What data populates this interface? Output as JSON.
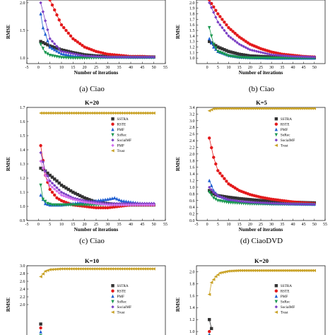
{
  "chart_data": [
    {
      "type": "line",
      "title": "",
      "caption": "(a) Ciao",
      "xlabel": "Number of iterations",
      "ylabel": "RMSE",
      "xlim": [
        -5,
        55
      ],
      "ylim": [
        0.9,
        2.05
      ],
      "xticks": [
        "-5",
        "0",
        "5",
        "10",
        "15",
        "20",
        "25",
        "30",
        "35",
        "40",
        "45",
        "50",
        "55"
      ],
      "yticks": [
        "1.0",
        "1.5",
        "2.0"
      ],
      "legend": "none",
      "series": [
        {
          "name": "SSTRA",
          "x": [
            1,
            5,
            10,
            15,
            20,
            25,
            30,
            35,
            40,
            45,
            50
          ],
          "values": [
            1.3,
            1.22,
            1.15,
            1.1,
            1.06,
            1.04,
            1.03,
            1.03,
            1.02,
            1.02,
            1.02
          ]
        },
        {
          "name": "RSTE",
          "x": [
            5,
            10,
            15,
            20,
            25,
            30,
            35,
            40,
            45,
            50
          ],
          "values": [
            2.05,
            1.6,
            1.35,
            1.2,
            1.12,
            1.07,
            1.05,
            1.03,
            1.03,
            1.02
          ]
        },
        {
          "name": "PMF",
          "x": [
            1,
            2,
            5,
            10,
            15,
            20,
            30,
            40,
            50
          ],
          "values": [
            1.8,
            1.55,
            1.2,
            1.08,
            1.04,
            1.03,
            1.02,
            1.02,
            1.02
          ]
        },
        {
          "name": "SoRec",
          "x": [
            1,
            3,
            5,
            10,
            15,
            20,
            30,
            40,
            50
          ],
          "values": [
            1.25,
            1.1,
            1.05,
            1.01,
            1.0,
            1.0,
            1.01,
            1.01,
            1.01
          ]
        },
        {
          "name": "SocialMF",
          "x": [
            1,
            5,
            10,
            20,
            30,
            40,
            50
          ],
          "values": [
            2.0,
            1.35,
            1.12,
            1.04,
            1.02,
            1.02,
            1.02
          ]
        }
      ]
    },
    {
      "type": "line",
      "title": "",
      "caption": "(b) Ciao",
      "xlabel": "Number of iterations",
      "ylabel": "RMSE",
      "xlim": [
        -5,
        55
      ],
      "ylim": [
        0.9,
        2.05
      ],
      "xticks": [
        "0",
        "5",
        "10",
        "15",
        "20",
        "25",
        "30",
        "35",
        "40",
        "45",
        "50"
      ],
      "yticks": [
        "1.0",
        "1.1",
        "1.2",
        "1.3",
        "1.4",
        "1.5",
        "1.6",
        "1.7",
        "1.8",
        "1.9",
        "2.0"
      ],
      "legend": "none",
      "series": [
        {
          "name": "SSTRA",
          "x": [
            1,
            5,
            10,
            15,
            20,
            25,
            30,
            35,
            40,
            45,
            50
          ],
          "values": [
            1.3,
            1.2,
            1.12,
            1.07,
            1.04,
            1.03,
            1.02,
            1.02,
            1.01,
            1.01,
            1.01
          ]
        },
        {
          "name": "RSTE",
          "x": [
            1,
            5,
            10,
            15,
            20,
            25,
            30,
            35,
            40,
            45,
            50
          ],
          "values": [
            2.05,
            1.8,
            1.55,
            1.38,
            1.25,
            1.17,
            1.11,
            1.07,
            1.05,
            1.03,
            1.02
          ]
        },
        {
          "name": "PMF",
          "x": [
            1,
            3,
            5,
            10,
            15,
            20,
            30,
            40,
            50
          ],
          "values": [
            1.35,
            1.2,
            1.12,
            1.05,
            1.02,
            1.01,
            1.0,
            1.0,
            1.0
          ]
        },
        {
          "name": "SoRec",
          "x": [
            1,
            3,
            5,
            10,
            15,
            20,
            30,
            40,
            50
          ],
          "values": [
            1.55,
            1.25,
            1.12,
            1.04,
            1.01,
            1.0,
            1.0,
            1.0,
            1.0
          ]
        },
        {
          "name": "SocialMF",
          "x": [
            1,
            5,
            10,
            15,
            20,
            30,
            40,
            50
          ],
          "values": [
            2.0,
            1.65,
            1.4,
            1.25,
            1.15,
            1.06,
            1.03,
            1.02
          ]
        }
      ]
    },
    {
      "type": "line",
      "title": "K=20",
      "caption": "(c) Ciao",
      "xlabel": "Number of iterations",
      "ylabel": "RMSE",
      "xlim": [
        -5,
        55
      ],
      "ylim": [
        0.9,
        1.7
      ],
      "xticks": [
        "-5",
        "0",
        "5",
        "10",
        "15",
        "20",
        "25",
        "30",
        "35",
        "40",
        "45",
        "50",
        "55"
      ],
      "yticks": [
        "0.9",
        "1.0",
        "1.1",
        "1.2",
        "1.3",
        "1.4",
        "1.5",
        "1.6",
        "1.7"
      ],
      "legend": "right",
      "series": [
        {
          "name": "SSTRA",
          "x": [
            1,
            3,
            5,
            8,
            10,
            15,
            20,
            25,
            30,
            35,
            40,
            45,
            50
          ],
          "values": [
            1.27,
            1.25,
            1.22,
            1.18,
            1.15,
            1.1,
            1.06,
            1.03,
            1.02,
            1.01,
            1.01,
            1.01,
            1.01
          ]
        },
        {
          "name": "RSTE",
          "x": [
            1,
            3,
            5,
            8,
            10,
            15,
            20,
            25,
            30,
            35,
            40,
            45,
            50
          ],
          "values": [
            1.43,
            1.22,
            1.12,
            1.06,
            1.04,
            1.01,
            1.0,
            0.99,
            0.99,
            1.0,
            1.01,
            1.01,
            1.01
          ]
        },
        {
          "name": "PMF",
          "x": [
            1,
            3,
            5,
            10,
            15,
            20,
            25,
            30,
            33,
            36,
            40,
            45,
            50
          ],
          "values": [
            1.08,
            1.02,
            1.01,
            1.01,
            1.02,
            1.03,
            1.04,
            1.05,
            1.06,
            1.04,
            1.03,
            1.02,
            1.02
          ]
        },
        {
          "name": "SoRec",
          "x": [
            1,
            2,
            4,
            6,
            10,
            15,
            20,
            30,
            40,
            50
          ],
          "values": [
            1.15,
            1.05,
            1.02,
            1.01,
            1.01,
            1.01,
            1.01,
            1.01,
            1.01,
            1.01
          ]
        },
        {
          "name": "SocialMF",
          "x": [
            1,
            3,
            5,
            10,
            15,
            20,
            25,
            30,
            35,
            40,
            45,
            50
          ],
          "values": [
            1.38,
            1.25,
            1.18,
            1.1,
            1.06,
            1.04,
            1.03,
            1.02,
            1.02,
            1.02,
            1.02,
            1.02
          ]
        },
        {
          "name": "PMF",
          "x": [
            1,
            3,
            5,
            10,
            15,
            20,
            25,
            30,
            35,
            40,
            45,
            50
          ],
          "values": [
            1.32,
            1.22,
            1.15,
            1.08,
            1.05,
            1.03,
            1.02,
            1.01,
            1.01,
            1.01,
            1.01,
            1.01
          ]
        },
        {
          "name": "Trust",
          "x": [
            1,
            3,
            5,
            10,
            15,
            20,
            25,
            30,
            35,
            40,
            45,
            50
          ],
          "values": [
            1.66,
            1.66,
            1.66,
            1.66,
            1.66,
            1.66,
            1.66,
            1.66,
            1.66,
            1.66,
            1.66,
            1.66
          ]
        }
      ]
    },
    {
      "type": "line",
      "title": "K=5",
      "caption": "(d) CiaoDVD",
      "xlabel": "Number of iterations",
      "ylabel": "RMSE",
      "xlim": [
        -5,
        55
      ],
      "ylim": [
        0.0,
        3.4
      ],
      "xticks": [
        "-5",
        "0",
        "5",
        "10",
        "15",
        "20",
        "25",
        "30",
        "35",
        "40",
        "45",
        "50",
        "55"
      ],
      "yticks": [
        "0.0",
        "0.2",
        "0.4",
        "0.6",
        "0.8",
        "1.0",
        "1.2",
        "1.4",
        "1.6",
        "1.8",
        "2.0",
        "2.2",
        "2.4",
        "2.6",
        "2.8",
        "3.0",
        "3.2",
        "3.4"
      ],
      "legend": "right",
      "series": [
        {
          "name": "SSTRA",
          "x": [
            1,
            3,
            5,
            10,
            15,
            20,
            25,
            30,
            35,
            40,
            45,
            50
          ],
          "values": [
            0.9,
            0.8,
            0.75,
            0.7,
            0.66,
            0.63,
            0.6,
            0.58,
            0.56,
            0.55,
            0.54,
            0.53
          ]
        },
        {
          "name": "RSTE",
          "x": [
            1,
            3,
            5,
            10,
            15,
            20,
            25,
            30,
            35,
            40,
            45,
            50
          ],
          "values": [
            2.48,
            1.9,
            1.5,
            1.1,
            0.9,
            0.78,
            0.7,
            0.64,
            0.6,
            0.56,
            0.53,
            0.51
          ]
        },
        {
          "name": "PMF",
          "x": [
            1,
            3,
            5,
            10,
            15,
            20,
            30,
            40,
            50
          ],
          "values": [
            1.2,
            0.9,
            0.75,
            0.62,
            0.57,
            0.54,
            0.51,
            0.5,
            0.49
          ]
        },
        {
          "name": "SoRec",
          "x": [
            1,
            3,
            5,
            10,
            15,
            20,
            30,
            40,
            50
          ],
          "values": [
            0.85,
            0.68,
            0.6,
            0.54,
            0.52,
            0.5,
            0.49,
            0.49,
            0.48
          ]
        },
        {
          "name": "SocialMF",
          "x": [
            1,
            3,
            5,
            10,
            15,
            20,
            30,
            40,
            50
          ],
          "values": [
            1.0,
            0.85,
            0.74,
            0.63,
            0.58,
            0.55,
            0.52,
            0.5,
            0.49
          ]
        },
        {
          "name": "Trust",
          "x": [
            1,
            3,
            5,
            10,
            15,
            20,
            25,
            30,
            35,
            40,
            45,
            50
          ],
          "values": [
            3.3,
            3.36,
            3.37,
            3.37,
            3.37,
            3.37,
            3.37,
            3.37,
            3.37,
            3.37,
            3.37,
            3.37
          ]
        }
      ]
    },
    {
      "type": "line",
      "title": "K=10",
      "caption": "",
      "xlabel": "",
      "ylabel": "RMSE",
      "xlim": [
        -5,
        55
      ],
      "ylim": [
        1.0,
        3.0
      ],
      "xticks": [],
      "yticks": [
        "2.0",
        "2.2",
        "2.4",
        "2.6",
        "2.8",
        "3.0"
      ],
      "legend": "right",
      "series": [
        {
          "name": "SSTRA",
          "x": [
            1
          ],
          "values": [
            1.5
          ]
        },
        {
          "name": "RSTE",
          "x": [
            1
          ],
          "values": [
            1.4
          ]
        },
        {
          "name": "PMF",
          "x": [
            1
          ],
          "values": [
            1.3
          ]
        },
        {
          "name": "SoRec",
          "x": [
            1
          ],
          "values": [
            1.2
          ]
        },
        {
          "name": "SocialMF",
          "x": [
            1
          ],
          "values": [
            1.1
          ]
        },
        {
          "name": "Trust",
          "x": [
            1,
            3,
            5,
            10,
            15,
            20,
            25,
            30,
            35,
            40,
            45,
            50
          ],
          "values": [
            2.72,
            2.86,
            2.9,
            2.92,
            2.92,
            2.92,
            2.92,
            2.92,
            2.92,
            2.92,
            2.92,
            2.92
          ]
        }
      ]
    },
    {
      "type": "line",
      "title": "K=20",
      "caption": "",
      "xlabel": "",
      "ylabel": "RMSE",
      "xlim": [
        -5,
        55
      ],
      "ylim": [
        0.8,
        2.1
      ],
      "xticks": [],
      "yticks": [
        "1.0",
        "1.2",
        "1.4",
        "1.6",
        "1.8",
        "2.0"
      ],
      "legend": "right",
      "series": [
        {
          "name": "SSTRA",
          "x": [
            1,
            2
          ],
          "values": [
            1.2,
            1.05
          ]
        },
        {
          "name": "RSTE",
          "x": [
            1
          ],
          "values": [
            1.0
          ]
        },
        {
          "name": "PMF",
          "x": [
            1
          ],
          "values": [
            0.95
          ]
        },
        {
          "name": "SoRec",
          "x": [
            1
          ],
          "values": [
            0.92
          ]
        },
        {
          "name": "SocialMF",
          "x": [
            1
          ],
          "values": [
            0.9
          ]
        },
        {
          "name": "Trust",
          "x": [
            1,
            2,
            4,
            6,
            10,
            15,
            20,
            25,
            30,
            35,
            40,
            45,
            50
          ],
          "values": [
            1.62,
            1.82,
            1.92,
            1.98,
            2.01,
            2.02,
            2.02,
            2.02,
            2.02,
            2.02,
            2.02,
            2.02,
            2.02
          ]
        }
      ]
    }
  ],
  "legend_labels": [
    "SSTRA",
    "RSTE",
    "PMF",
    "SoRec",
    "SocialMF",
    "PMF",
    "Trust"
  ],
  "colors": {
    "SSTRA": "#333333",
    "RSTE": "#e31a1c",
    "PMF": "#1f5fd1",
    "SoRec": "#1a9850",
    "SocialMF": "#7b3fc4",
    "PMF2": "#d26ef0",
    "Trust": "#c9a227"
  }
}
